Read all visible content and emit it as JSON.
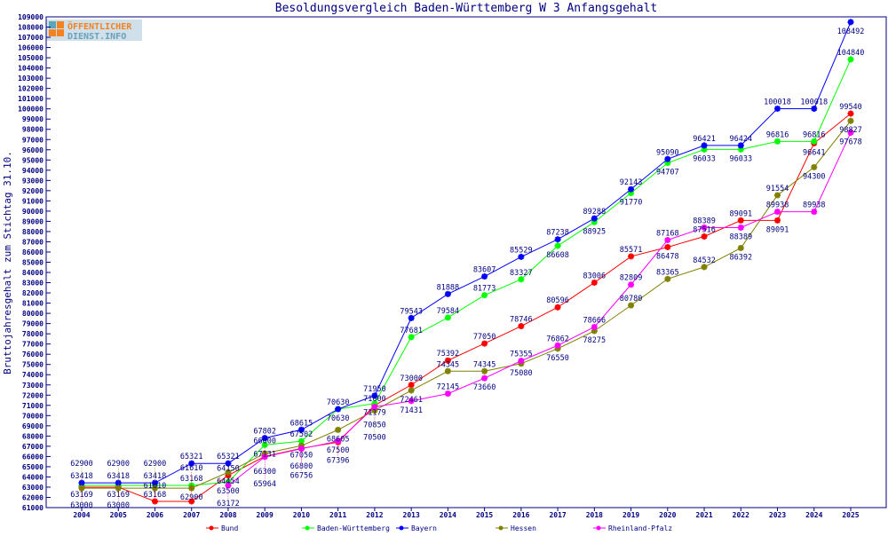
{
  "logo": {
    "line1": "ÖFFENTLICHER",
    "line2": "DIENST.INFO"
  },
  "chart_data": {
    "type": "line",
    "title": "Besoldungsvergleich Baden-Württemberg W 3 Anfangsgehalt",
    "xlabel": "",
    "ylabel": "Bruttojahresgehalt zum Stichtag 31.10.",
    "ylim": [
      61000,
      109000
    ],
    "ytick_step": 1000,
    "grid": false,
    "legend_placement": "bottom",
    "categories": [
      "2004",
      "2005",
      "2006",
      "2007",
      "2008",
      "2009",
      "2010",
      "2011",
      "2012",
      "2013",
      "2014",
      "2015",
      "2016",
      "2017",
      "2018",
      "2019",
      "2020",
      "2021",
      "2022",
      "2023",
      "2024",
      "2025"
    ],
    "series": [
      {
        "name": "Bund",
        "color": "#ff0000",
        "values": [
          63000,
          63000,
          61610,
          61610,
          64150,
          66000,
          66800,
          67396,
          71000,
          73000,
          75392,
          77050,
          78746,
          80596,
          83006,
          85571,
          86478,
          87516,
          89091,
          89091,
          96641,
          99540
        ]
      },
      {
        "name": "Baden-Württemberg",
        "color": "#00ff00",
        "values": [
          63169,
          63169,
          63168,
          63168,
          63500,
          67131,
          67502,
          70630,
          71179,
          77681,
          79584,
          81773,
          83327,
          86608,
          88925,
          91770,
          94707,
          96033,
          96033,
          96816,
          96816,
          104840
        ]
      },
      {
        "name": "Bayern",
        "color": "#0000ff",
        "values": [
          63418,
          63418,
          63418,
          65321,
          65321,
          67802,
          68615,
          70630,
          71950,
          79543,
          81888,
          83607,
          85529,
          87238,
          89288,
          92143,
          95090,
          96421,
          96424,
          100018,
          100018,
          108492
        ]
      },
      {
        "name": "Hessen",
        "color": "#808000",
        "values": [
          62900,
          62900,
          62900,
          62900,
          64454,
          66300,
          67050,
          68605,
          70500,
          72461,
          74345,
          74345,
          75080,
          76550,
          78275,
          80780,
          83365,
          84532,
          86392,
          91554,
          94300,
          98827
        ]
      },
      {
        "name": "Rheinland-Pfalz",
        "color": "#ff00ff",
        "values": [
          null,
          null,
          null,
          null,
          63172,
          65964,
          66756,
          67500,
          70850,
          71431,
          72145,
          73660,
          75355,
          76862,
          78666,
          82809,
          87168,
          88389,
          88389,
          89938,
          89938,
          97678
        ]
      }
    ]
  }
}
